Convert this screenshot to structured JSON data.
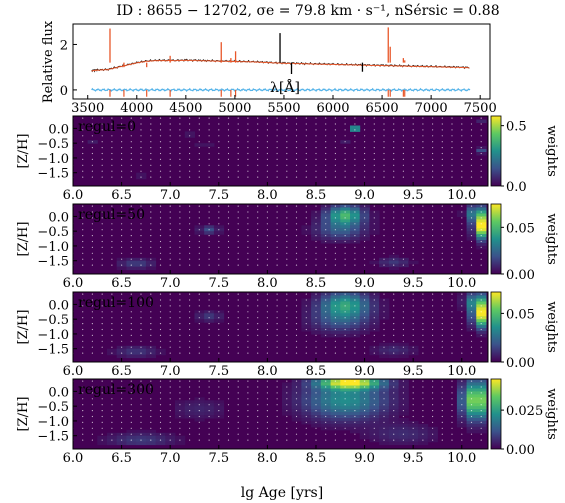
{
  "figure": {
    "title": "ID : 8655 − 12702,   σe = 79.8 km · s⁻¹,   nSérsic = 0.88",
    "shared_xlabel": "lg Age [yrs]"
  },
  "chart_data": [
    {
      "type": "line",
      "role": "spectrum",
      "ylabel": "Relative flux",
      "xlabel": "λ[Å]",
      "xlim": [
        3350,
        7600
      ],
      "ylim": [
        -0.4,
        2.9
      ],
      "xticks": [
        3500,
        4000,
        4500,
        5000,
        5500,
        6000,
        6500,
        7000,
        7500
      ],
      "yticks": [
        0,
        2
      ],
      "series": [
        {
          "key": "data",
          "color": "#000000"
        },
        {
          "key": "model",
          "color": "#e8572a"
        },
        {
          "key": "residual",
          "color": "#56b4e9"
        }
      ],
      "data_x": [
        3540,
        3600,
        3700,
        3800,
        3900,
        4000,
        4100,
        4200,
        4300,
        4400,
        4500,
        4600,
        4700,
        4800,
        4900,
        5000,
        5100,
        5200,
        5300,
        5400,
        5500,
        5600,
        5700,
        5800,
        5900,
        6000,
        6100,
        6200,
        6300,
        6400,
        6500,
        6600,
        6700,
        6800,
        6900,
        7000,
        7100,
        7200,
        7300,
        7400
      ],
      "data_y": [
        0.85,
        0.88,
        0.9,
        1.0,
        1.1,
        1.2,
        1.27,
        1.3,
        1.3,
        1.3,
        1.31,
        1.3,
        1.29,
        1.28,
        1.27,
        1.26,
        1.25,
        1.24,
        1.22,
        1.2,
        1.18,
        1.17,
        1.16,
        1.15,
        1.14,
        1.13,
        1.12,
        1.11,
        1.1,
        1.09,
        1.08,
        1.07,
        1.06,
        1.05,
        1.04,
        1.03,
        1.02,
        1.01,
        1.0,
        0.98
      ],
      "emission_lines": [
        {
          "x": 3727,
          "height": 2.7,
          "series": "model"
        },
        {
          "x": 3869,
          "height": 1.0,
          "series": "model"
        },
        {
          "x": 4101,
          "height": 1.0,
          "series": "model"
        },
        {
          "x": 4340,
          "height": 1.5,
          "series": "model"
        },
        {
          "x": 4861,
          "height": 2.1,
          "series": "model"
        },
        {
          "x": 4959,
          "height": 1.4,
          "series": "model"
        },
        {
          "x": 5007,
          "height": 1.7,
          "series": "model"
        },
        {
          "x": 5460,
          "height": 2.5,
          "series": "data"
        },
        {
          "x": 5577,
          "height": 0.7,
          "series": "data"
        },
        {
          "x": 6300,
          "height": 0.8,
          "series": "data"
        },
        {
          "x": 6563,
          "height": 2.75,
          "series": "model"
        },
        {
          "x": 6583,
          "height": 1.9,
          "series": "model"
        },
        {
          "x": 6717,
          "height": 1.4,
          "series": "model"
        },
        {
          "x": 6731,
          "height": 1.3,
          "series": "model"
        }
      ]
    },
    {
      "type": "heatmap",
      "title": "regul=0",
      "ylabel": "[Z/H]",
      "colorbar_label": "weights",
      "xlim": [
        6.0,
        10.27
      ],
      "ylim": [
        -1.95,
        0.42
      ],
      "xticks": [
        6.0,
        6.5,
        7.0,
        7.5,
        8.0,
        8.5,
        9.0,
        9.5,
        10.0
      ],
      "yticks": [
        0.0,
        -0.5,
        -1.0,
        -1.5
      ],
      "cbar_range": [
        0,
        0.58
      ],
      "cbar_ticks": [
        0.0,
        0.5
      ],
      "blobs": [
        {
          "age": 8.9,
          "z": 0.0,
          "weight": 0.58,
          "sx": 0.03,
          "sz": 0.04
        },
        {
          "age": 6.2,
          "z": -0.45,
          "weight": 0.05,
          "sx": 0.06,
          "sz": 0.06
        },
        {
          "age": 6.7,
          "z": -1.6,
          "weight": 0.04,
          "sx": 0.08,
          "sz": 0.08
        },
        {
          "age": 7.2,
          "z": -0.2,
          "weight": 0.05,
          "sx": 0.06,
          "sz": 0.06
        },
        {
          "age": 7.35,
          "z": -0.55,
          "weight": 0.05,
          "sx": 0.06,
          "sz": 0.06
        },
        {
          "age": 8.8,
          "z": -0.45,
          "weight": 0.05,
          "sx": 0.05,
          "sz": 0.06
        },
        {
          "age": 10.2,
          "z": -0.75,
          "weight": 0.14,
          "sx": 0.04,
          "sz": 0.06
        },
        {
          "age": 10.2,
          "z": 0.25,
          "weight": 0.06,
          "sx": 0.04,
          "sz": 0.05
        }
      ]
    },
    {
      "type": "heatmap",
      "title": "regul=50",
      "ylabel": "[Z/H]",
      "colorbar_label": "weights",
      "xlim": [
        6.0,
        10.27
      ],
      "ylim": [
        -1.95,
        0.42
      ],
      "xticks": [
        6.0,
        6.5,
        7.0,
        7.5,
        8.0,
        8.5,
        9.0,
        9.5,
        10.0
      ],
      "yticks": [
        0.0,
        -0.5,
        -1.0,
        -1.5
      ],
      "cbar_range": [
        0,
        0.075
      ],
      "cbar_ticks": [
        0.0,
        0.05
      ],
      "blobs": [
        {
          "age": 8.8,
          "z": 0.05,
          "weight": 0.048,
          "sx": 0.13,
          "sz": 0.22
        },
        {
          "age": 8.75,
          "z": -0.45,
          "weight": 0.022,
          "sx": 0.18,
          "sz": 0.25
        },
        {
          "age": 10.2,
          "z": -0.35,
          "weight": 0.075,
          "sx": 0.05,
          "sz": 0.28
        },
        {
          "age": 10.15,
          "z": 0.1,
          "weight": 0.035,
          "sx": 0.07,
          "sz": 0.2
        },
        {
          "age": 7.4,
          "z": -0.45,
          "weight": 0.018,
          "sx": 0.07,
          "sz": 0.1
        },
        {
          "age": 6.65,
          "z": -1.6,
          "weight": 0.015,
          "sx": 0.13,
          "sz": 0.12
        },
        {
          "age": 9.3,
          "z": -1.55,
          "weight": 0.013,
          "sx": 0.12,
          "sz": 0.12
        }
      ]
    },
    {
      "type": "heatmap",
      "title": "regul=100",
      "ylabel": "[Z/H]",
      "colorbar_label": "weights",
      "xlim": [
        6.0,
        10.27
      ],
      "ylim": [
        -1.95,
        0.42
      ],
      "xticks": [
        6.0,
        6.5,
        7.0,
        7.5,
        8.0,
        8.5,
        9.0,
        9.5,
        10.0
      ],
      "yticks": [
        0.0,
        -0.5,
        -1.0,
        -1.5
      ],
      "cbar_range": [
        0,
        0.072
      ],
      "cbar_ticks": [
        0.0,
        0.05
      ],
      "blobs": [
        {
          "age": 8.8,
          "z": 0.0,
          "weight": 0.04,
          "sx": 0.18,
          "sz": 0.3
        },
        {
          "age": 8.75,
          "z": -0.55,
          "weight": 0.018,
          "sx": 0.22,
          "sz": 0.3
        },
        {
          "age": 10.2,
          "z": -0.35,
          "weight": 0.068,
          "sx": 0.06,
          "sz": 0.3
        },
        {
          "age": 10.15,
          "z": 0.1,
          "weight": 0.032,
          "sx": 0.08,
          "sz": 0.22
        },
        {
          "age": 7.4,
          "z": -0.4,
          "weight": 0.013,
          "sx": 0.09,
          "sz": 0.12
        },
        {
          "age": 6.65,
          "z": -1.6,
          "weight": 0.012,
          "sx": 0.16,
          "sz": 0.14
        },
        {
          "age": 9.3,
          "z": -1.55,
          "weight": 0.01,
          "sx": 0.15,
          "sz": 0.14
        }
      ]
    },
    {
      "type": "heatmap",
      "title": "regul=300",
      "ylabel": "[Z/H]",
      "colorbar_label": "weights",
      "xlim": [
        6.0,
        10.27
      ],
      "ylim": [
        -1.95,
        0.42
      ],
      "xticks": [
        6.0,
        6.5,
        7.0,
        7.5,
        8.0,
        8.5,
        9.0,
        9.5,
        10.0
      ],
      "yticks": [
        0.0,
        -0.5,
        -1.0,
        -1.5
      ],
      "cbar_range": [
        0,
        0.045
      ],
      "cbar_ticks": [
        0.0,
        0.025
      ],
      "blobs": [
        {
          "age": 8.85,
          "z": 0.3,
          "weight": 0.042,
          "sx": 0.22,
          "sz": 0.15
        },
        {
          "age": 8.8,
          "z": -0.3,
          "weight": 0.022,
          "sx": 0.3,
          "sz": 0.45
        },
        {
          "age": 10.15,
          "z": -0.3,
          "weight": 0.04,
          "sx": 0.1,
          "sz": 0.45
        },
        {
          "age": 6.7,
          "z": -1.65,
          "weight": 0.008,
          "sx": 0.25,
          "sz": 0.18
        },
        {
          "age": 7.3,
          "z": -0.6,
          "weight": 0.005,
          "sx": 0.2,
          "sz": 0.25
        },
        {
          "age": 9.4,
          "z": -1.45,
          "weight": 0.006,
          "sx": 0.25,
          "sz": 0.25
        }
      ]
    }
  ]
}
